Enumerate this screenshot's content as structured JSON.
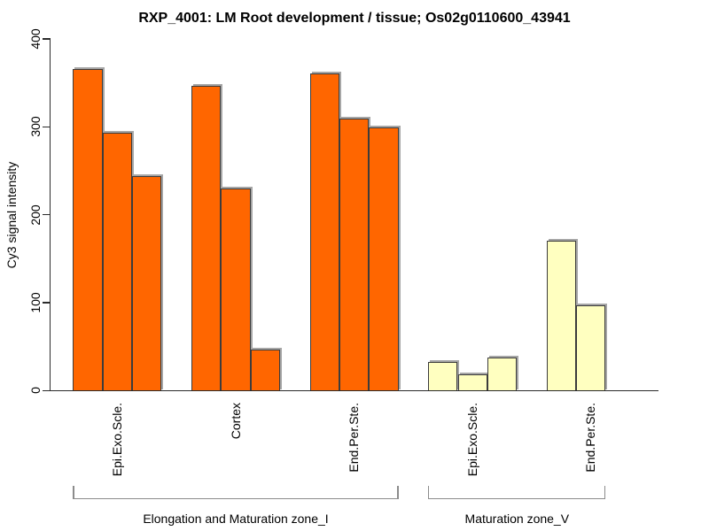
{
  "chart_data": {
    "type": "bar",
    "title": "RXP_4001: LM Root development / tissue; Os02g0110600_43941",
    "ylabel": "Cy3 signal intensity",
    "xlabel": "",
    "ylim": [
      0,
      400
    ],
    "yticks": [
      0,
      100,
      200,
      300,
      400
    ],
    "grid": false,
    "legend": false,
    "sections": [
      {
        "label": "Elongation and Maturation zone_I",
        "color": "#FF6600",
        "groups": [
          {
            "label": "Epi.Exo.Scle.",
            "values": [
              365,
              293,
              243
            ]
          },
          {
            "label": "Cortex",
            "values": [
              346,
              229,
              46
            ]
          },
          {
            "label": "End.Per.Ste.",
            "values": [
              360,
              309,
              299
            ]
          }
        ]
      },
      {
        "label": "Maturation zone_V",
        "color": "#FFFFC0",
        "groups": [
          {
            "label": "Epi.Exo.Scle.",
            "values": [
              32,
              18,
              37
            ]
          },
          {
            "label": "End.Per.Ste.",
            "values": [
              170,
              96,
              null
            ]
          }
        ]
      }
    ]
  }
}
